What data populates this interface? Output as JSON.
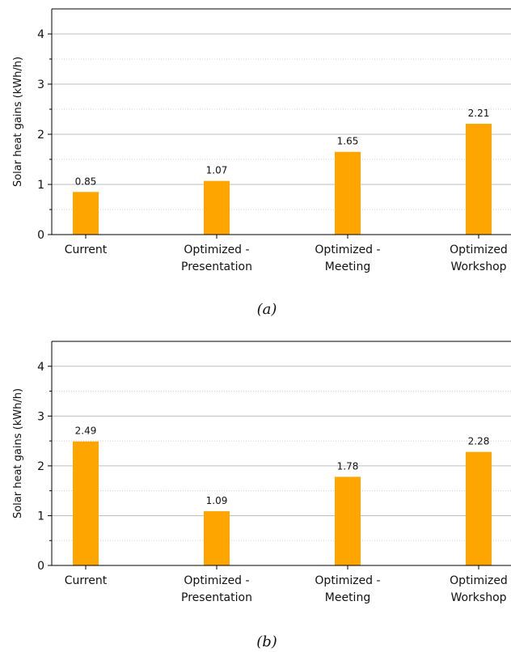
{
  "chart_data": [
    {
      "type": "bar",
      "caption": "(a)",
      "categories": [
        "Current",
        "Optimized - Presentation",
        "Optimized - Meeting",
        "Optimized - Workshop"
      ],
      "category_lines": [
        [
          "Current"
        ],
        [
          "Optimized -",
          "Presentation"
        ],
        [
          "Optimized -",
          "Meeting"
        ],
        [
          "Optimized",
          "Workshop"
        ]
      ],
      "values": [
        0.85,
        1.07,
        1.65,
        2.21
      ],
      "data_labels": [
        "0.85",
        "1.07",
        "1.65",
        "2.21"
      ],
      "ylabel": "Solar heat gains (kWh/h)",
      "ylim": [
        0,
        4.5
      ],
      "yticks": [
        0,
        1,
        2,
        3,
        4
      ],
      "grid": {
        "major": true,
        "minor": true,
        "axis": "y"
      },
      "bar_color": "#FFA500"
    },
    {
      "type": "bar",
      "caption": "(b)",
      "categories": [
        "Current",
        "Optimized - Presentation",
        "Optimized - Meeting",
        "Optimized - Workshop"
      ],
      "category_lines": [
        [
          "Current"
        ],
        [
          "Optimized -",
          "Presentation"
        ],
        [
          "Optimized -",
          "Meeting"
        ],
        [
          "Optimized",
          "Workshop"
        ]
      ],
      "values": [
        2.49,
        1.09,
        1.78,
        2.28
      ],
      "data_labels": [
        "2.49",
        "1.09",
        "1.78",
        "2.28"
      ],
      "ylabel": "Solar heat gains (kWh/h)",
      "ylim": [
        0,
        4.5
      ],
      "yticks": [
        0,
        1,
        2,
        3,
        4
      ],
      "grid": {
        "major": true,
        "minor": true,
        "axis": "y"
      },
      "bar_color": "#FFA500"
    }
  ]
}
